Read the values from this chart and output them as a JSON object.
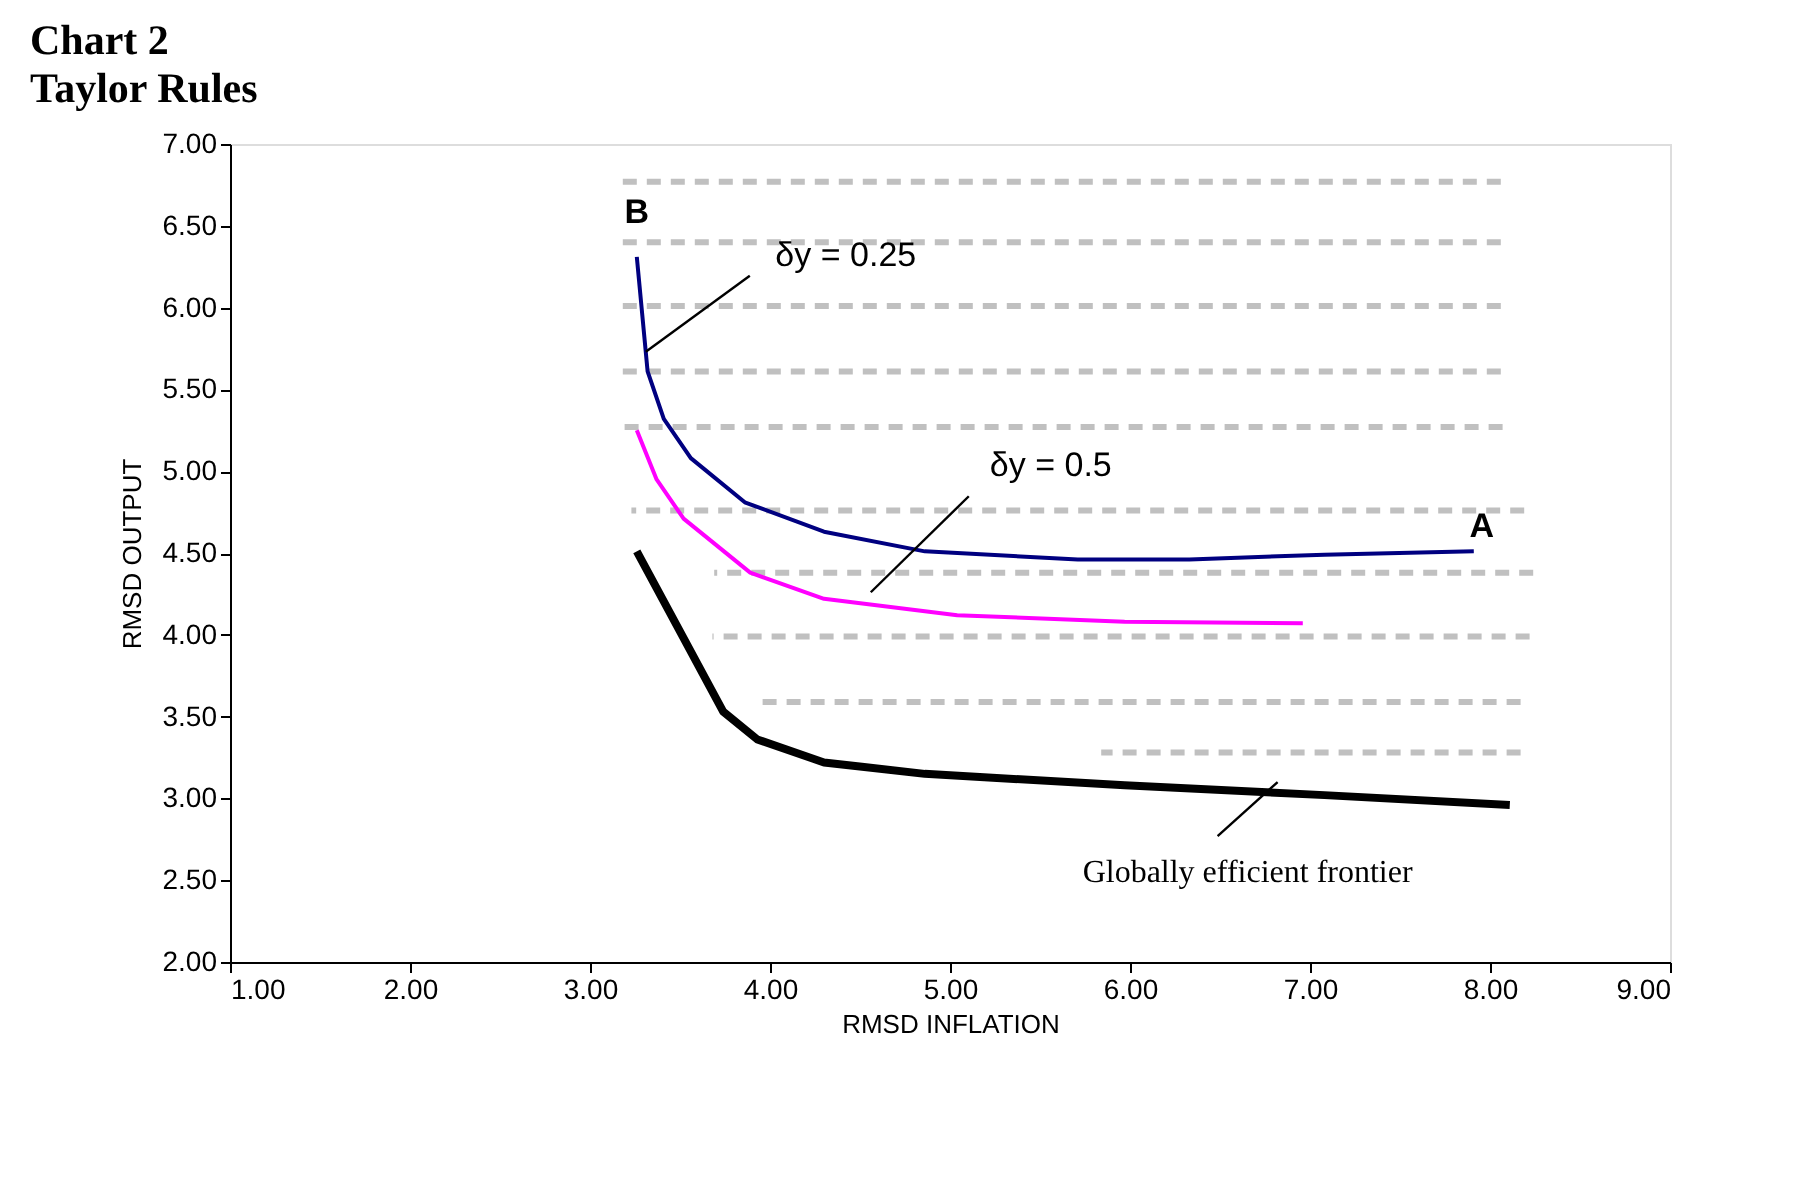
{
  "chart_data": {
    "type": "line",
    "title": "Chart 2",
    "subtitle": "Taylor Rules",
    "xlabel": "RMSD  INFLATION",
    "ylabel": "RMSD  OUTPUT",
    "xlim": [
      1,
      9
    ],
    "xticks": [
      {
        "value": 1,
        "label": "1.00"
      },
      {
        "value": 2,
        "label": "2.00"
      },
      {
        "value": 3,
        "label": "3.00"
      },
      {
        "value": 4,
        "label": "4.00"
      },
      {
        "value": 5,
        "label": "5.00"
      },
      {
        "value": 6,
        "label": "6.00"
      },
      {
        "value": 7,
        "label": "7.00"
      },
      {
        "value": 8,
        "label": "8.00"
      },
      {
        "value": 9,
        "label": "9.00"
      }
    ],
    "ylim": [
      2,
      7
    ],
    "yticks": [
      {
        "value": 2,
        "label": "2.00"
      },
      {
        "value": 2.5,
        "label": "2.50"
      },
      {
        "value": 3,
        "label": "3.00"
      },
      {
        "value": 3.5,
        "label": "3.50"
      },
      {
        "value": 4,
        "label": "4.00"
      },
      {
        "value": 4.5,
        "label": "4.50"
      },
      {
        "value": 5,
        "label": "5.00"
      },
      {
        "value": 5.5,
        "label": "5.50"
      },
      {
        "value": 6,
        "label": "6.00"
      },
      {
        "value": 6.5,
        "label": "6.50"
      },
      {
        "value": 7,
        "label": "7.00"
      }
    ],
    "grid": false,
    "legend": false,
    "marker": "none",
    "series": [
      {
        "color": "#c0c0c0",
        "line_style": "dashed",
        "x": [
          3.17,
          8.06
        ],
        "values": [
          6.77,
          6.77
        ]
      },
      {
        "color": "#c0c0c0",
        "line_style": "dashed",
        "x": [
          3.17,
          8.06
        ],
        "values": [
          6.4,
          6.4
        ]
      },
      {
        "color": "#c0c0c0",
        "line_style": "dashed",
        "x": [
          3.18,
          8.06
        ],
        "values": [
          6.01,
          6.01
        ]
      },
      {
        "color": "#c0c0c0",
        "line_style": "dashed",
        "x": [
          3.18,
          8.06
        ],
        "values": [
          5.61,
          5.61
        ]
      },
      {
        "color": "#c0c0c0",
        "line_style": "dashed",
        "x": [
          3.19,
          8.07
        ],
        "values": [
          5.27,
          5.27
        ]
      },
      {
        "color": "#c0c0c0",
        "line_style": "dashed",
        "x": [
          3.23,
          8.19
        ],
        "values": [
          4.76,
          4.76
        ]
      },
      {
        "color": "#c0c0c0",
        "line_style": "dashed",
        "x": [
          3.69,
          8.24
        ],
        "values": [
          4.38,
          4.38
        ]
      },
      {
        "color": "#c0c0c0",
        "line_style": "dashed",
        "x": [
          3.68,
          8.22
        ],
        "values": [
          3.99,
          3.99
        ]
      },
      {
        "color": "#c0c0c0",
        "line_style": "dashed",
        "x": [
          3.91,
          8.17
        ],
        "values": [
          3.59,
          3.59
        ]
      },
      {
        "color": "#c0c0c0",
        "line_style": "dashed",
        "x": [
          5.84,
          8.17
        ],
        "values": [
          3.28,
          3.28
        ]
      },
      {
        "color": "#000080",
        "line_style": "solid",
        "x": [
          3.26,
          3.32,
          3.41,
          3.56,
          3.86,
          4.3,
          4.86,
          5.71,
          6.33,
          7.08,
          7.91
        ],
        "values": [
          6.31,
          5.61,
          5.32,
          5.08,
          4.81,
          4.63,
          4.51,
          4.46,
          4.46,
          4.49,
          4.51
        ]
      },
      {
        "color": "#ff00ff",
        "line_style": "solid",
        "x": [
          3.26,
          3.37,
          3.52,
          3.89,
          4.3,
          5.04,
          5.97,
          6.96
        ],
        "values": [
          5.25,
          4.95,
          4.71,
          4.38,
          4.22,
          4.12,
          4.08,
          4.07
        ]
      },
      {
        "color": "#000000",
        "line_style": "solid",
        "x": [
          3.26,
          3.52,
          3.74,
          3.93,
          4.3,
          4.86,
          5.97,
          7.08,
          8.11
        ],
        "values": [
          4.51,
          3.98,
          3.53,
          3.36,
          3.22,
          3.15,
          3.08,
          3.02,
          2.96
        ]
      }
    ],
    "annotations": [
      {
        "text": "B",
        "x": 3.26,
        "y": 6.31
      },
      {
        "text": "A",
        "x": 7.91,
        "y": 4.51
      },
      {
        "text": "δy = 0.25",
        "x": 3.31,
        "y": 5.73
      },
      {
        "text": "δy = 0.5",
        "x": 4.56,
        "y": 4.26
      },
      {
        "text": "Globally efficient frontier",
        "x": 6.82,
        "y": 3.1
      }
    ]
  }
}
